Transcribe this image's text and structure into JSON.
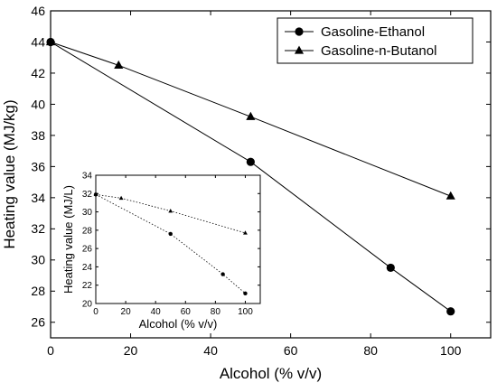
{
  "chart_data": [
    {
      "id": "main",
      "type": "line",
      "xlabel": "Alcohol (% v/v)",
      "ylabel": "Heating value (MJ/kg)",
      "xlim": [
        0,
        110
      ],
      "ylim": [
        25,
        46
      ],
      "xticks": [
        0,
        20,
        40,
        60,
        80,
        100
      ],
      "yticks": [
        26,
        28,
        30,
        32,
        34,
        36,
        38,
        40,
        42,
        44,
        46
      ],
      "legend_position": "top-right",
      "series": [
        {
          "name": "Gasoline-Ethanol",
          "marker": "circle",
          "line": "solid",
          "x": [
            0,
            50,
            85,
            100
          ],
          "y": [
            44.0,
            36.3,
            29.5,
            26.7
          ]
        },
        {
          "name": "Gasoline-n-Butanol",
          "marker": "triangle",
          "line": "solid",
          "x": [
            0,
            17,
            50,
            100
          ],
          "y": [
            44.0,
            42.5,
            39.2,
            34.1
          ]
        }
      ]
    },
    {
      "id": "inset",
      "type": "line",
      "xlabel": "Alcohol (% v/v)",
      "ylabel": "Heating value (MJ/L)",
      "xlim": [
        0,
        110
      ],
      "ylim": [
        20,
        34
      ],
      "xticks": [
        0,
        20,
        40,
        60,
        80,
        100
      ],
      "yticks": [
        20,
        22,
        24,
        26,
        28,
        30,
        32,
        34
      ],
      "series": [
        {
          "name": "Gasoline-Ethanol",
          "marker": "circle",
          "line": "dotted",
          "x": [
            0,
            50,
            85,
            100
          ],
          "y": [
            31.9,
            27.6,
            23.2,
            21.1
          ]
        },
        {
          "name": "Gasoline-n-Butanol",
          "marker": "triangle",
          "line": "dotted",
          "x": [
            0,
            17,
            50,
            100
          ],
          "y": [
            31.9,
            31.5,
            30.1,
            27.7
          ]
        }
      ]
    }
  ]
}
